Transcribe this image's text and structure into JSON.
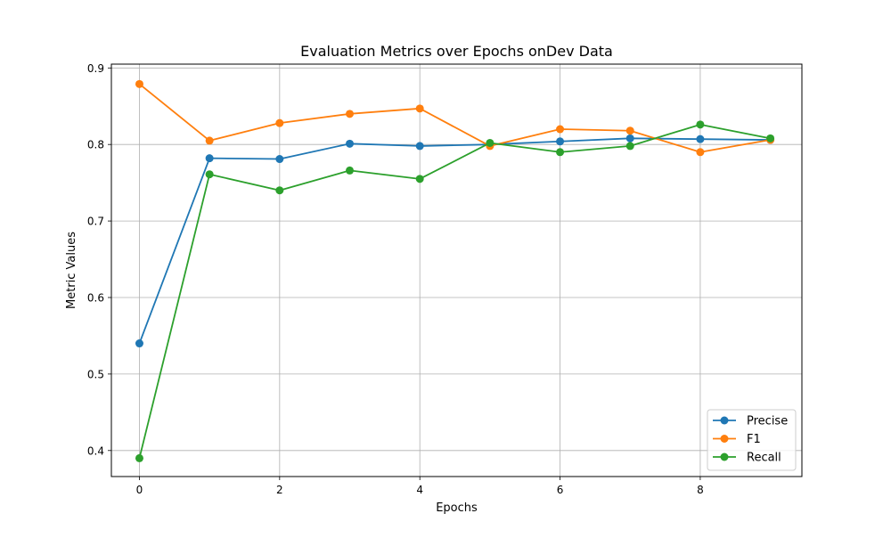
{
  "chart_data": {
    "type": "line",
    "title": "Evaluation Metrics over Epochs onDev Data",
    "xlabel": "Epochs",
    "ylabel": "Metric Values",
    "x": [
      0,
      1,
      2,
      3,
      4,
      5,
      6,
      7,
      8,
      9
    ],
    "xlim": [
      -0.4,
      9.45
    ],
    "ylim": [
      0.366,
      0.905
    ],
    "xticks": [
      0,
      2,
      4,
      6,
      8
    ],
    "yticks": [
      0.4,
      0.5,
      0.6,
      0.7,
      0.8,
      0.9
    ],
    "grid": true,
    "legend_position": "lower-right",
    "series": [
      {
        "name": "Precise",
        "color": "#1f77b4",
        "values": [
          0.54,
          0.782,
          0.781,
          0.801,
          0.798,
          0.8,
          0.804,
          0.808,
          0.807,
          0.806
        ]
      },
      {
        "name": "F1",
        "color": "#ff7f0e",
        "values": [
          0.879,
          0.805,
          0.828,
          0.84,
          0.847,
          0.798,
          0.82,
          0.818,
          0.79,
          0.806
        ]
      },
      {
        "name": "Recall",
        "color": "#2ca02c",
        "values": [
          0.39,
          0.761,
          0.74,
          0.766,
          0.755,
          0.802,
          0.79,
          0.798,
          0.826,
          0.808
        ]
      }
    ]
  }
}
